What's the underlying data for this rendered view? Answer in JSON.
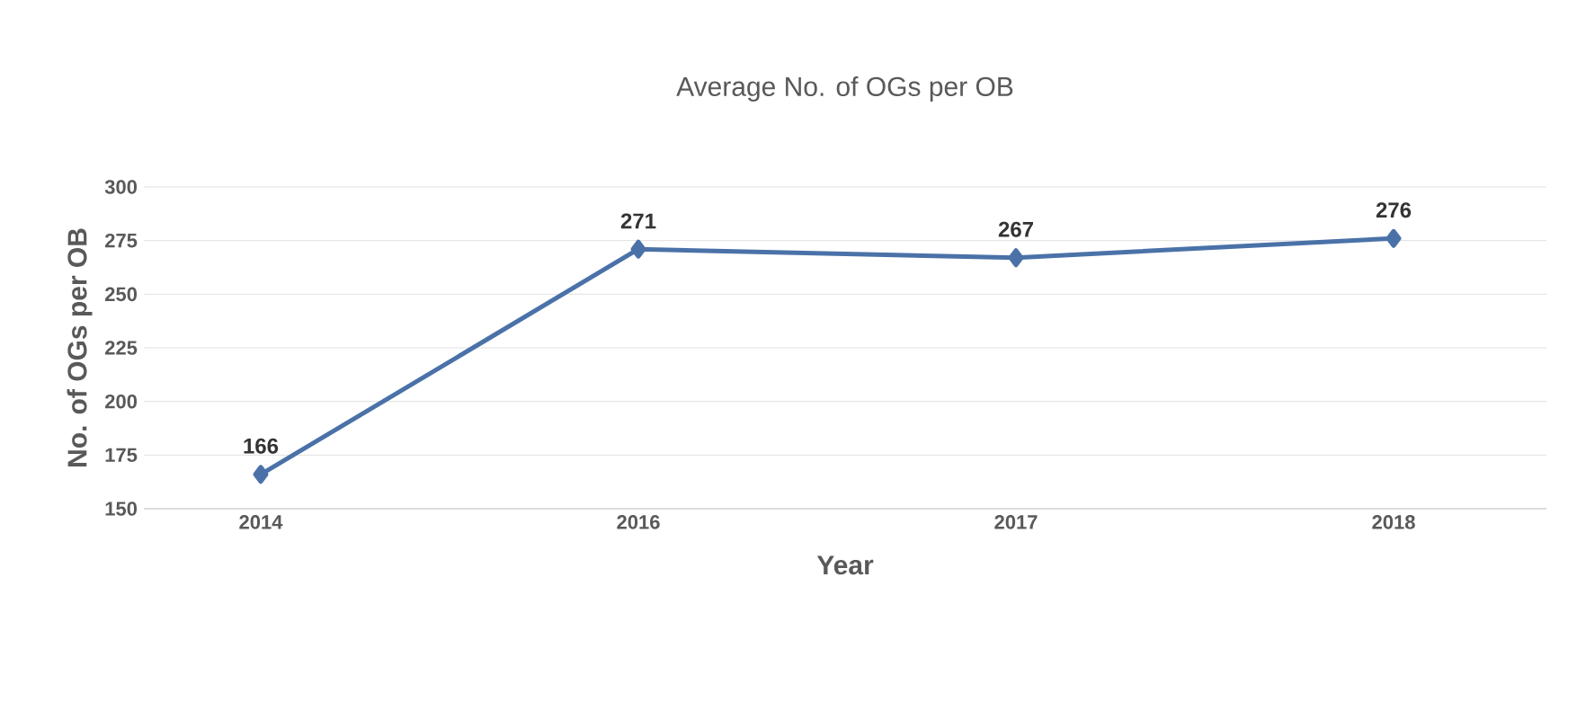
{
  "chart_data": {
    "type": "line",
    "title": "Average No. of OGs per OB",
    "xlabel": "Year",
    "ylabel": "No. of OGs per OB",
    "categories": [
      "2014",
      "2016",
      "2017",
      "2018"
    ],
    "series": [
      {
        "color": "#4a72a8",
        "values": [
          166,
          271,
          267,
          276
        ]
      }
    ],
    "ylim": [
      150,
      300
    ],
    "yticks": [
      150,
      175,
      200,
      225,
      250,
      275,
      300
    ],
    "grid": "y",
    "marker": "diamond",
    "line_style": "solid",
    "data_labels": true
  }
}
